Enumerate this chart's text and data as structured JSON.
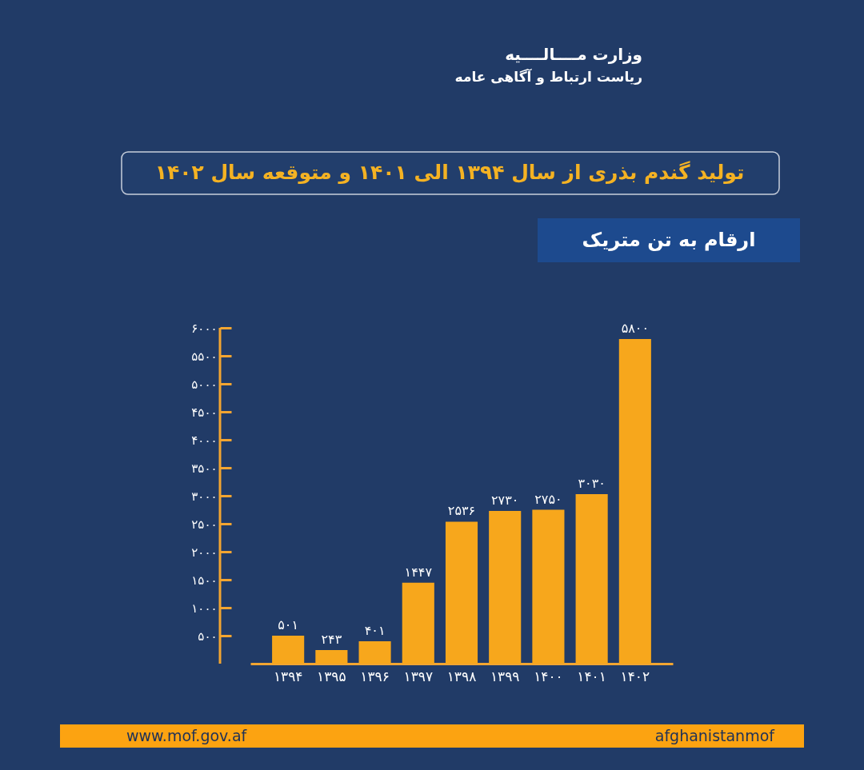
{
  "chart_data": {
    "type": "bar",
    "title": "تولید گندم بذری از سال ۱۳۹۴ الی ۱۴۰۱ و متوقعه سال ۱۴۰۲",
    "subtitle": "ارقام به تن متریک",
    "categories": [
      "۱۳۹۴",
      "۱۳۹۵",
      "۱۳۹۶",
      "۱۳۹۷",
      "۱۳۹۸",
      "۱۳۹۹",
      "۱۴۰۰",
      "۱۴۰۱",
      "۱۴۰۲"
    ],
    "values": [
      501,
      243,
      401,
      1447,
      2536,
      2730,
      2750,
      3030,
      5800
    ],
    "value_labels": [
      "۵۰۱",
      "۲۴۳",
      "۴۰۱",
      "۱۴۴۷",
      "۲۵۳۶",
      "۲۷۳۰",
      "۲۷۵۰",
      "۳۰۳۰",
      "۵۸۰۰"
    ],
    "color": "#f7a71c",
    "ylim": [
      0,
      6000
    ],
    "yticks": [
      {
        "value": 500,
        "label": "۵۰۰"
      },
      {
        "value": 1000,
        "label": "۱۰۰۰"
      },
      {
        "value": 1500,
        "label": "۱۵۰۰"
      },
      {
        "value": 2000,
        "label": "۲۰۰۰"
      },
      {
        "value": 2500,
        "label": "۲۵۰۰"
      },
      {
        "value": 3000,
        "label": "۳۰۰۰"
      },
      {
        "value": 3500,
        "label": "۳۵۰۰"
      },
      {
        "value": 4000,
        "label": "۴۰۰۰"
      },
      {
        "value": 4500,
        "label": "۴۵۰۰"
      },
      {
        "value": 5000,
        "label": "۵۰۰۰"
      },
      {
        "value": 5500,
        "label": "۵۵۰۰"
      },
      {
        "value": 6000,
        "label": "۶۰۰۰"
      }
    ],
    "annotations": [
      "وزارت مــــالــــیه",
      "ریاست ارتباط و آگاهی عامه",
      "www.mof.gov.af",
      "afghanistanmof"
    ]
  }
}
